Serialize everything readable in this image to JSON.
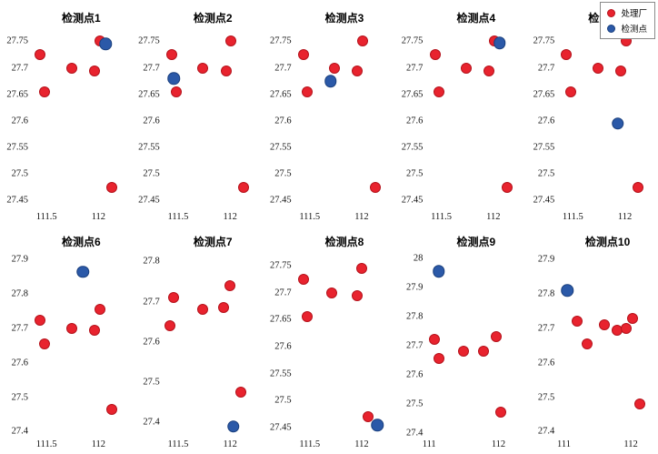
{
  "legend": {
    "items": [
      {
        "label": "处理厂",
        "fill": "#e8232e",
        "edge": "#b5121b"
      },
      {
        "label": "检测点",
        "fill": "#2b59a8",
        "edge": "#1a3f7d"
      }
    ]
  },
  "chart_data": [
    {
      "type": "scatter",
      "title": "检测点1",
      "xlim": [
        111.35,
        112.25
      ],
      "ylim": [
        27.43,
        27.78
      ],
      "xticks": [
        111.5,
        112
      ],
      "yticks": [
        27.45,
        27.5,
        27.55,
        27.6,
        27.65,
        27.7,
        27.75
      ],
      "series": [
        {
          "id": "plant-point",
          "name": "处理厂",
          "fill": "#e8232e",
          "edge": "#b5121b",
          "size": 12,
          "points": [
            [
              111.44,
              27.725
            ],
            [
              111.48,
              27.655
            ],
            [
              111.74,
              27.7
            ],
            [
              111.96,
              27.695
            ],
            [
              112.01,
              27.75
            ],
            [
              112.13,
              27.475
            ]
          ]
        },
        {
          "id": "detection-point",
          "name": "检测点",
          "fill": "#2b59a8",
          "edge": "#1a3f7d",
          "size": 13.5,
          "points": [
            [
              112.07,
              27.745
            ]
          ]
        }
      ]
    },
    {
      "type": "scatter",
      "title": "检测点2",
      "xlim": [
        111.35,
        112.25
      ],
      "ylim": [
        27.43,
        27.78
      ],
      "xticks": [
        111.5,
        112
      ],
      "yticks": [
        27.45,
        27.5,
        27.55,
        27.6,
        27.65,
        27.7,
        27.75
      ],
      "series": [
        {
          "id": "plant-point",
          "name": "处理厂",
          "fill": "#e8232e",
          "edge": "#b5121b",
          "size": 12,
          "points": [
            [
              111.44,
              27.725
            ],
            [
              111.48,
              27.655
            ],
            [
              111.74,
              27.7
            ],
            [
              111.96,
              27.695
            ],
            [
              112.01,
              27.75
            ],
            [
              112.13,
              27.475
            ]
          ]
        },
        {
          "id": "detection-point",
          "name": "检测点",
          "fill": "#2b59a8",
          "edge": "#1a3f7d",
          "size": 13.5,
          "points": [
            [
              111.46,
              27.68
            ]
          ]
        }
      ]
    },
    {
      "type": "scatter",
      "title": "检测点3",
      "xlim": [
        111.35,
        112.25
      ],
      "ylim": [
        27.43,
        27.78
      ],
      "xticks": [
        111.5,
        112
      ],
      "yticks": [
        27.45,
        27.5,
        27.55,
        27.6,
        27.65,
        27.7,
        27.75
      ],
      "series": [
        {
          "id": "plant-point",
          "name": "处理厂",
          "fill": "#e8232e",
          "edge": "#b5121b",
          "size": 12,
          "points": [
            [
              111.44,
              27.725
            ],
            [
              111.48,
              27.655
            ],
            [
              111.74,
              27.7
            ],
            [
              111.96,
              27.695
            ],
            [
              112.01,
              27.75
            ],
            [
              112.13,
              27.475
            ]
          ]
        },
        {
          "id": "detection-point",
          "name": "检测点",
          "fill": "#2b59a8",
          "edge": "#1a3f7d",
          "size": 13.5,
          "points": [
            [
              111.7,
              27.675
            ]
          ]
        }
      ]
    },
    {
      "type": "scatter",
      "title": "检测点4",
      "xlim": [
        111.35,
        112.25
      ],
      "ylim": [
        27.43,
        27.78
      ],
      "xticks": [
        111.5,
        112
      ],
      "yticks": [
        27.45,
        27.5,
        27.55,
        27.6,
        27.65,
        27.7,
        27.75
      ],
      "series": [
        {
          "id": "plant-point",
          "name": "处理厂",
          "fill": "#e8232e",
          "edge": "#b5121b",
          "size": 12,
          "points": [
            [
              111.44,
              27.725
            ],
            [
              111.48,
              27.655
            ],
            [
              111.74,
              27.7
            ],
            [
              111.96,
              27.695
            ],
            [
              112.01,
              27.75
            ],
            [
              112.13,
              27.475
            ]
          ]
        },
        {
          "id": "detection-point",
          "name": "检测点",
          "fill": "#2b59a8",
          "edge": "#1a3f7d",
          "size": 13.5,
          "points": [
            [
              112.06,
              27.747
            ]
          ]
        }
      ]
    },
    {
      "type": "scatter",
      "title": "检测点5",
      "xlim": [
        111.35,
        112.25
      ],
      "ylim": [
        27.43,
        27.78
      ],
      "xticks": [
        111.5,
        112
      ],
      "yticks": [
        27.45,
        27.5,
        27.55,
        27.6,
        27.65,
        27.7,
        27.75
      ],
      "series": [
        {
          "id": "plant-point",
          "name": "处理厂",
          "fill": "#e8232e",
          "edge": "#b5121b",
          "size": 12,
          "points": [
            [
              111.44,
              27.725
            ],
            [
              111.48,
              27.655
            ],
            [
              111.74,
              27.7
            ],
            [
              111.96,
              27.695
            ],
            [
              112.01,
              27.75
            ],
            [
              112.13,
              27.475
            ]
          ]
        },
        {
          "id": "detection-point",
          "name": "检测点",
          "fill": "#2b59a8",
          "edge": "#1a3f7d",
          "size": 13.5,
          "points": [
            [
              111.93,
              27.595
            ]
          ]
        }
      ]
    },
    {
      "type": "scatter",
      "title": "检测点6",
      "xlim": [
        111.35,
        112.25
      ],
      "ylim": [
        27.38,
        27.93
      ],
      "xticks": [
        111.5,
        112
      ],
      "yticks": [
        27.4,
        27.5,
        27.6,
        27.7,
        27.8,
        27.9
      ],
      "series": [
        {
          "id": "plant-point",
          "name": "处理厂",
          "fill": "#e8232e",
          "edge": "#b5121b",
          "size": 12,
          "points": [
            [
              111.44,
              27.725
            ],
            [
              111.48,
              27.655
            ],
            [
              111.74,
              27.7
            ],
            [
              111.96,
              27.695
            ],
            [
              112.01,
              27.755
            ],
            [
              112.13,
              27.465
            ]
          ]
        },
        {
          "id": "detection-point",
          "name": "检测点",
          "fill": "#2b59a8",
          "edge": "#1a3f7d",
          "size": 13.5,
          "points": [
            [
              111.85,
              27.865
            ]
          ]
        }
      ]
    },
    {
      "type": "scatter",
      "title": "检测点7",
      "xlim": [
        111.35,
        112.25
      ],
      "ylim": [
        27.36,
        27.83
      ],
      "xticks": [
        111.5,
        112
      ],
      "yticks": [
        27.4,
        27.5,
        27.6,
        27.7,
        27.8
      ],
      "series": [
        {
          "id": "plant-point",
          "name": "处理厂",
          "fill": "#e8232e",
          "edge": "#b5121b",
          "size": 12,
          "points": [
            [
              111.46,
              27.71
            ],
            [
              111.42,
              27.64
            ],
            [
              111.74,
              27.68
            ],
            [
              111.94,
              27.685
            ],
            [
              112.0,
              27.74
            ],
            [
              112.1,
              27.475
            ]
          ]
        },
        {
          "id": "detection-point",
          "name": "检测点",
          "fill": "#2b59a8",
          "edge": "#1a3f7d",
          "size": 13.5,
          "points": [
            [
              112.03,
              27.39
            ]
          ]
        }
      ]
    },
    {
      "type": "scatter",
      "title": "检测点8",
      "xlim": [
        111.35,
        112.25
      ],
      "ylim": [
        27.43,
        27.78
      ],
      "xticks": [
        111.5,
        112
      ],
      "yticks": [
        27.45,
        27.5,
        27.55,
        27.6,
        27.65,
        27.7,
        27.75
      ],
      "series": [
        {
          "id": "plant-point",
          "name": "处理厂",
          "fill": "#e8232e",
          "edge": "#b5121b",
          "size": 12,
          "points": [
            [
              111.44,
              27.725
            ],
            [
              111.48,
              27.655
            ],
            [
              111.71,
              27.7
            ],
            [
              111.96,
              27.695
            ],
            [
              112.0,
              27.745
            ],
            [
              112.06,
              27.47
            ]
          ]
        },
        {
          "id": "detection-point",
          "name": "检测点",
          "fill": "#2b59a8",
          "edge": "#1a3f7d",
          "size": 13.5,
          "points": [
            [
              112.15,
              27.455
            ]
          ]
        }
      ]
    },
    {
      "type": "scatter",
      "title": "检测点9",
      "xlim": [
        110.95,
        112.3
      ],
      "ylim": [
        27.38,
        28.03
      ],
      "xticks": [
        111,
        112
      ],
      "yticks": [
        27.4,
        27.5,
        27.6,
        27.7,
        27.8,
        27.9,
        28
      ],
      "series": [
        {
          "id": "plant-point",
          "name": "处理厂",
          "fill": "#e8232e",
          "edge": "#b5121b",
          "size": 12,
          "points": [
            [
              111.08,
              27.72
            ],
            [
              111.14,
              27.655
            ],
            [
              111.5,
              27.68
            ],
            [
              111.78,
              27.68
            ],
            [
              111.97,
              27.73
            ],
            [
              112.03,
              27.47
            ]
          ]
        },
        {
          "id": "detection-point",
          "name": "检测点",
          "fill": "#2b59a8",
          "edge": "#1a3f7d",
          "size": 13.5,
          "points": [
            [
              111.14,
              27.955
            ]
          ]
        }
      ]
    },
    {
      "type": "scatter",
      "title": "检测点10",
      "xlim": [
        110.9,
        112.3
      ],
      "ylim": [
        27.38,
        27.93
      ],
      "xticks": [
        111,
        112
      ],
      "yticks": [
        27.4,
        27.5,
        27.6,
        27.7,
        27.8,
        27.9
      ],
      "series": [
        {
          "id": "plant-point",
          "name": "处理厂",
          "fill": "#e8232e",
          "edge": "#b5121b",
          "size": 12,
          "points": [
            [
              111.2,
              27.72
            ],
            [
              111.35,
              27.655
            ],
            [
              111.6,
              27.71
            ],
            [
              111.8,
              27.695
            ],
            [
              111.93,
              27.7
            ],
            [
              112.02,
              27.73
            ],
            [
              112.13,
              27.48
            ]
          ]
        },
        {
          "id": "detection-point",
          "name": "检测点",
          "fill": "#2b59a8",
          "edge": "#1a3f7d",
          "size": 13.5,
          "points": [
            [
              111.05,
              27.81
            ]
          ]
        }
      ]
    }
  ]
}
